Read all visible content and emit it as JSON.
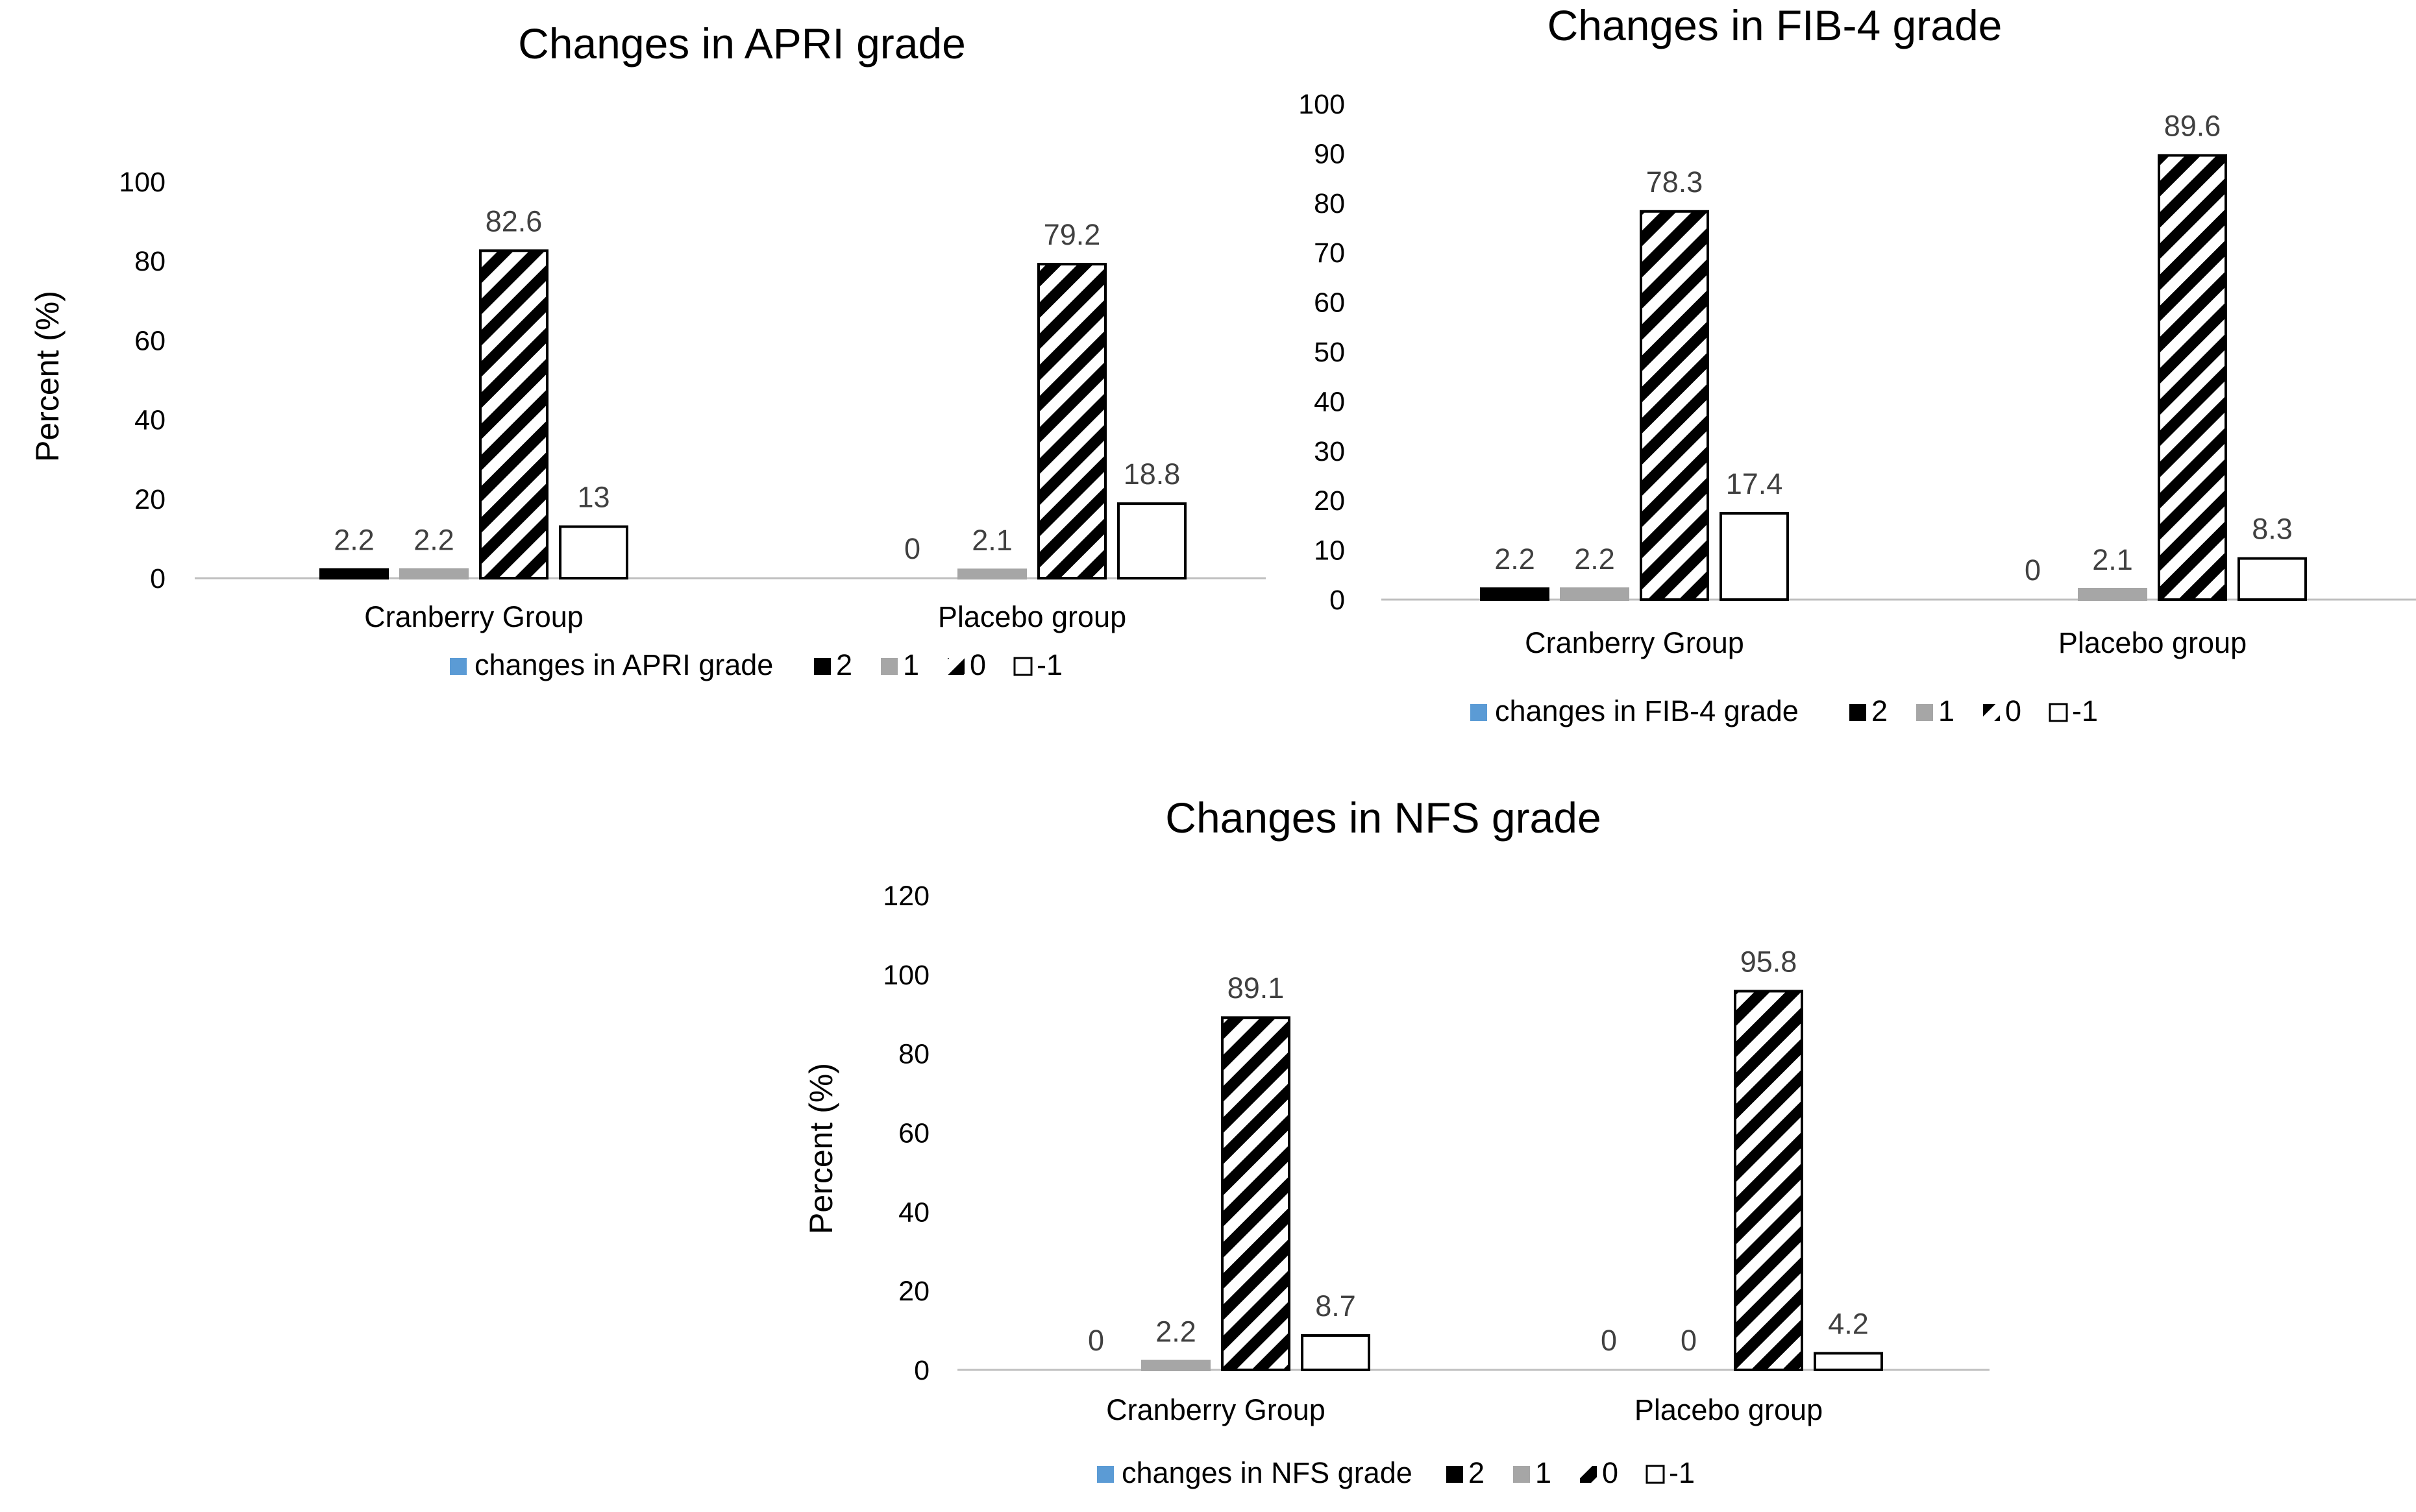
{
  "colors": {
    "header": "#5b9bd5",
    "grade_2": "#000000",
    "grade_1": "#a6a6a6",
    "grade_0": "hatched-black",
    "grade_minus1": "#ffffff",
    "axis": "#bfbfbf"
  },
  "chart_data": [
    {
      "type": "bar",
      "title": "Changes in APRI grade",
      "ylabel": "Percent (%)",
      "xlabel": "",
      "ylim": [
        0,
        100
      ],
      "yticks": [
        0,
        20,
        40,
        60,
        80,
        100
      ],
      "categories": [
        "Cranberry Group",
        "Placebo group"
      ],
      "legend_header": "changes in APRI grade",
      "legend_position": "bottom",
      "grid": false,
      "series": [
        {
          "name": "2",
          "values": [
            2.2,
            0
          ],
          "labels": [
            "2.2",
            "0"
          ]
        },
        {
          "name": "1",
          "values": [
            2.2,
            2.1
          ],
          "labels": [
            "2.2",
            "2.1"
          ]
        },
        {
          "name": "0",
          "values": [
            82.6,
            79.2
          ],
          "labels": [
            "82.6",
            "79.2"
          ]
        },
        {
          "name": "-1",
          "values": [
            13,
            18.8
          ],
          "labels": [
            "13",
            "18.8"
          ]
        }
      ]
    },
    {
      "type": "bar",
      "title": "Changes in FIB-4 grade",
      "ylabel": "",
      "xlabel": "",
      "ylim": [
        0,
        100
      ],
      "yticks": [
        0,
        10,
        20,
        30,
        40,
        50,
        60,
        70,
        80,
        90,
        100
      ],
      "categories": [
        "Cranberry Group",
        "Placebo group"
      ],
      "legend_header": "changes in FIB-4 grade",
      "legend_position": "bottom",
      "grid": false,
      "series": [
        {
          "name": "2",
          "values": [
            2.2,
            0
          ],
          "labels": [
            "2.2",
            "0"
          ]
        },
        {
          "name": "1",
          "values": [
            2.2,
            2.1
          ],
          "labels": [
            "2.2",
            "2.1"
          ]
        },
        {
          "name": "0",
          "values": [
            78.3,
            89.6
          ],
          "labels": [
            "78.3",
            "89.6"
          ]
        },
        {
          "name": "-1",
          "values": [
            17.4,
            8.3
          ],
          "labels": [
            "17.4",
            "8.3"
          ]
        }
      ]
    },
    {
      "type": "bar",
      "title": "Changes in NFS grade",
      "ylabel": "Percent (%)",
      "xlabel": "",
      "ylim": [
        0,
        120
      ],
      "yticks": [
        0,
        20,
        40,
        60,
        80,
        100,
        120
      ],
      "categories": [
        "Cranberry Group",
        "Placebo group"
      ],
      "legend_header": "changes in NFS grade",
      "legend_position": "bottom",
      "grid": false,
      "series": [
        {
          "name": "2",
          "values": [
            0,
            0
          ],
          "labels": [
            "0",
            "0"
          ]
        },
        {
          "name": "1",
          "values": [
            2.2,
            0
          ],
          "labels": [
            "2.2",
            "0"
          ]
        },
        {
          "name": "0",
          "values": [
            89.1,
            95.8
          ],
          "labels": [
            "89.1",
            "95.8"
          ]
        },
        {
          "name": "-1",
          "values": [
            8.7,
            4.2
          ],
          "labels": [
            "8.7",
            "4.2"
          ]
        }
      ]
    }
  ]
}
